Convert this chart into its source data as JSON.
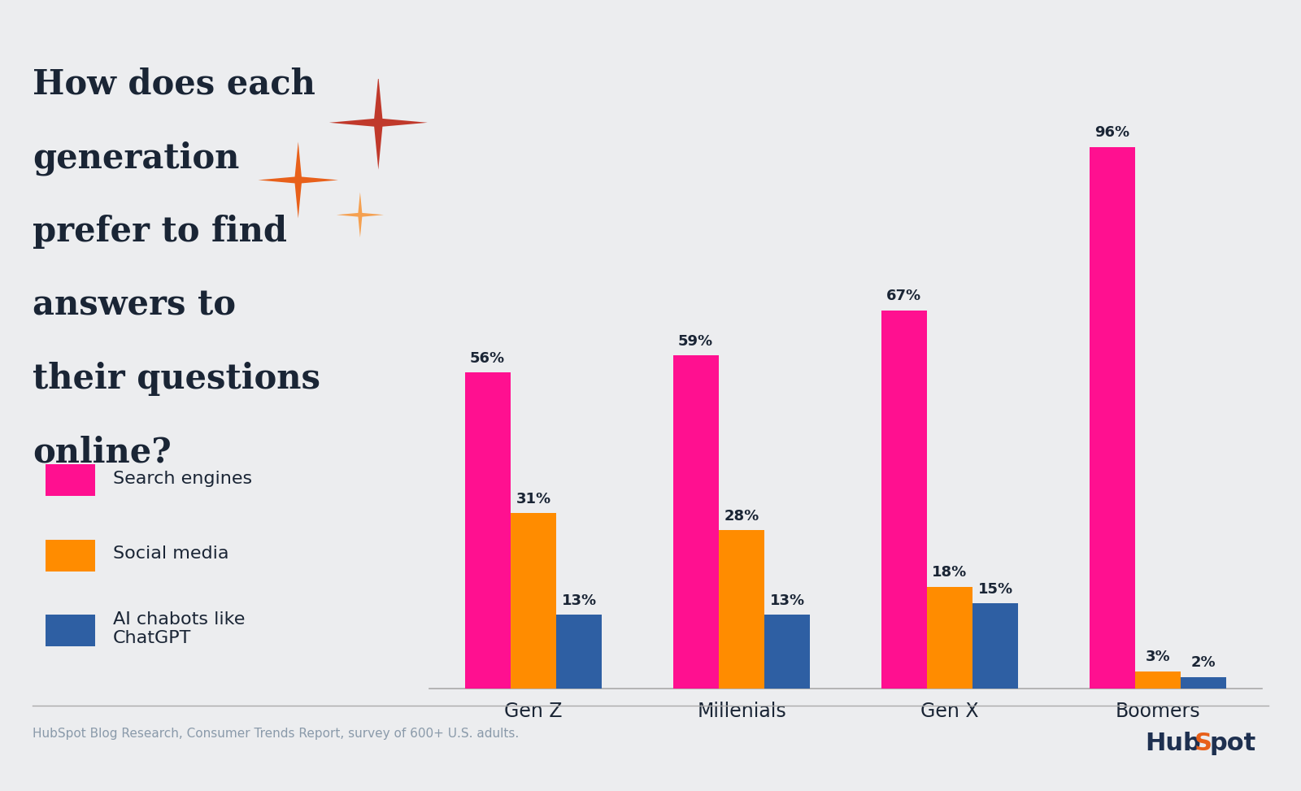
{
  "title_lines": [
    "How does each",
    "generation",
    "prefer to find",
    "answers to",
    "their questions",
    "online?"
  ],
  "categories": [
    "Gen Z",
    "Millenials",
    "Gen X",
    "Boomers"
  ],
  "series": {
    "Search engines": [
      56,
      59,
      67,
      96
    ],
    "Social media": [
      31,
      28,
      18,
      3
    ],
    "AI chatbots like ChatGPT": [
      13,
      13,
      15,
      2
    ]
  },
  "series_colors": {
    "Search engines": "#FF1090",
    "Social media": "#FF8C00",
    "AI chatbots like ChatGPT": "#2E5FA3"
  },
  "legend_labels": [
    "Search engines",
    "Social media",
    "AI chabots like\nChatGPT"
  ],
  "bar_width": 0.22,
  "background_color": "#ECEDEF",
  "text_color": "#1a2535",
  "footer_text": "HubSpot Blog Research, Consumer Trends Report, survey of 600+ U.S. adults.",
  "footer_color": "#8A9AAA",
  "ylim": [
    0,
    108
  ],
  "sparkle_large_color": "#C0392B",
  "sparkle_medium_color": "#E8601A",
  "sparkle_small_color": "#F5A050"
}
